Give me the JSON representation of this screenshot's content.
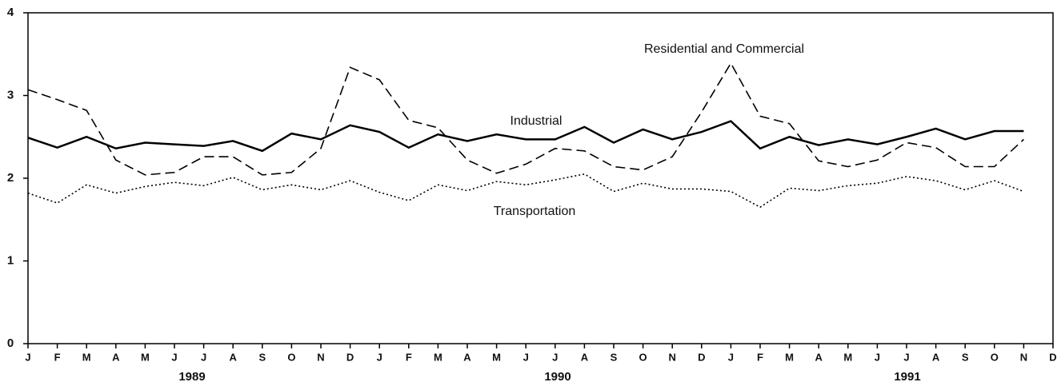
{
  "chart_data": {
    "type": "line",
    "categories": [
      "J",
      "F",
      "M",
      "A",
      "M",
      "J",
      "J",
      "A",
      "S",
      "O",
      "N",
      "D",
      "J",
      "F",
      "M",
      "A",
      "M",
      "J",
      "J",
      "A",
      "S",
      "O",
      "N",
      "D",
      "J",
      "F",
      "M",
      "A",
      "M",
      "J",
      "J",
      "A",
      "S",
      "O",
      "N",
      "D"
    ],
    "year_labels": [
      "1989",
      "1990",
      "1991"
    ],
    "series": [
      {
        "name": "Industrial",
        "color": "#000000",
        "style": "solid",
        "values": [
          2.49,
          2.37,
          2.5,
          2.36,
          2.43,
          2.41,
          2.39,
          2.45,
          2.33,
          2.54,
          2.47,
          2.64,
          2.56,
          2.37,
          2.53,
          2.45,
          2.53,
          2.47,
          2.47,
          2.62,
          2.43,
          2.59,
          2.47,
          2.56,
          2.69,
          2.36,
          2.5,
          2.4,
          2.47,
          2.41,
          2.5,
          2.6,
          2.47,
          2.57,
          2.57,
          null
        ]
      },
      {
        "name": "Residential and Commercial",
        "color": "#000000",
        "style": "dashed",
        "values": [
          3.07,
          2.95,
          2.82,
          2.22,
          2.04,
          2.07,
          2.26,
          2.26,
          2.04,
          2.07,
          2.36,
          3.34,
          3.19,
          2.7,
          2.61,
          2.22,
          2.06,
          2.17,
          2.36,
          2.33,
          2.14,
          2.1,
          2.26,
          2.8,
          3.39,
          2.75,
          2.66,
          2.21,
          2.14,
          2.22,
          2.43,
          2.37,
          2.14,
          2.14,
          2.47,
          null
        ]
      },
      {
        "name": "Transportation",
        "color": "#000000",
        "style": "dotted",
        "values": [
          1.82,
          1.7,
          1.92,
          1.82,
          1.9,
          1.95,
          1.91,
          2.01,
          1.86,
          1.92,
          1.86,
          1.97,
          1.83,
          1.73,
          1.92,
          1.85,
          1.96,
          1.92,
          1.98,
          2.05,
          1.84,
          1.94,
          1.87,
          1.87,
          1.84,
          1.65,
          1.88,
          1.85,
          1.91,
          1.94,
          2.02,
          1.97,
          1.86,
          1.97,
          1.84,
          null
        ]
      }
    ],
    "ylim": [
      0,
      4
    ],
    "yticks": [
      0,
      1,
      2,
      3,
      4
    ],
    "grid": false
  }
}
